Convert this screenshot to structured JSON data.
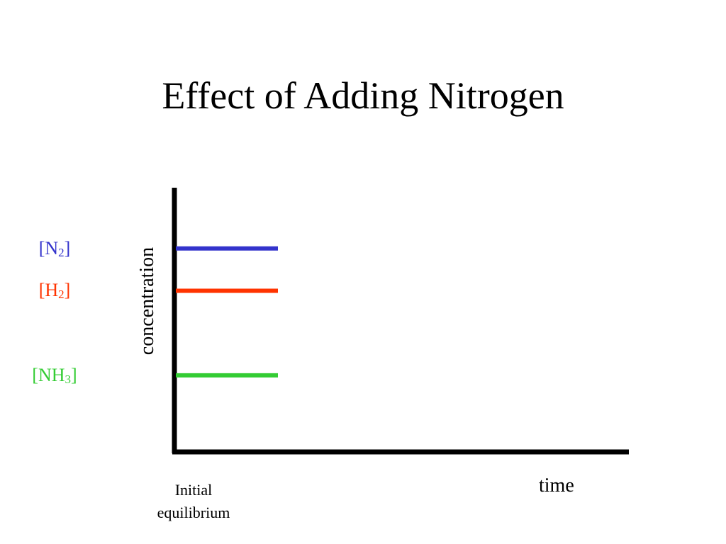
{
  "title": "Effect of Adding Nitrogen",
  "chart_data": {
    "type": "line",
    "title": "Effect of Adding Nitrogen",
    "xlabel": "time",
    "ylabel": "concentration",
    "x_tick_labels": [
      "Initial\nequilibrium"
    ],
    "x": [
      0,
      1
    ],
    "ylim": [
      0,
      1
    ],
    "grid": false,
    "legend": "left",
    "series": [
      {
        "name_prefix": "[N",
        "name_sub": "2",
        "name_suffix": "]",
        "color": "#3333cc",
        "values": [
          0.77,
          0.77
        ]
      },
      {
        "name_prefix": "[H",
        "name_sub": "2",
        "name_suffix": "]",
        "color": "#ff3300",
        "values": [
          0.61,
          0.61
        ]
      },
      {
        "name_prefix": "[NH",
        "name_sub": "3",
        "name_suffix": "]",
        "color": "#33cc33",
        "values": [
          0.29,
          0.29
        ]
      }
    ]
  }
}
